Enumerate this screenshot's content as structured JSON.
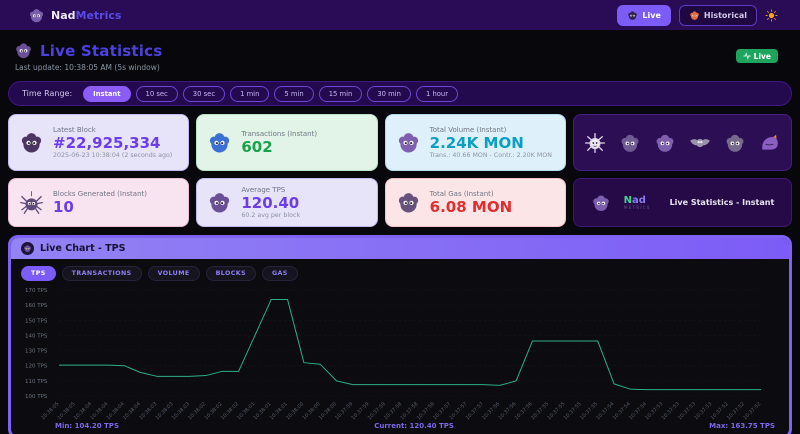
{
  "header": {
    "brand_nad": "Nad",
    "brand_metrics": "Metrics",
    "live_label": "Live",
    "historical_label": "Historical"
  },
  "page": {
    "title": "Live Statistics",
    "last_update": "Last update: 10:38:05 AM  (5s window)",
    "live_badge": "Live"
  },
  "time_range": {
    "label": "Time Range:",
    "selected": "Instant",
    "options": [
      "Instant",
      "10 sec",
      "30 sec",
      "1 min",
      "5 min",
      "15 min",
      "30 min",
      "1 hour"
    ]
  },
  "stats": [
    {
      "label": "Latest Block",
      "value": "#22,925,334",
      "sub": "2025-06-23 10:38:04 (2 seconds ago)"
    },
    {
      "label": "Transactions (Instant)",
      "value": "602",
      "sub": ""
    },
    {
      "label": "Total Volume (Instant)",
      "value": "2.24K MON",
      "sub": "Trans.: 40.66 MON - Contr.: 2.20K MON"
    },
    {
      "label": "Blocks Generated (Instant)",
      "value": "10",
      "sub": ""
    },
    {
      "label": "Average TPS",
      "value": "120.40",
      "sub": "60.2 avg per block"
    },
    {
      "label": "Total Gas (Instant)",
      "value": "6.08 MON",
      "sub": ""
    }
  ],
  "mascots": [
    "spiky-creature",
    "fluffy-creature",
    "cat-creature",
    "bat-creature",
    "round-creature",
    "slime-creature"
  ],
  "brand_card": {
    "brand_n": "N",
    "brand_rest": "ad",
    "metrics": "METRICS",
    "subtitle": "Live Statistics - Instant"
  },
  "chart": {
    "title": "Live Chart - TPS",
    "tabs": [
      "TPS",
      "TRANSACTIONS",
      "VOLUME",
      "BLOCKS",
      "GAS"
    ],
    "selected_tab": "TPS",
    "footer": {
      "min": "Min: 104.20 TPS",
      "current": "Current: 120.40 TPS",
      "max": "Max: 163.75 TPS"
    }
  },
  "chart_data": {
    "type": "line",
    "title": "Live Chart - TPS",
    "ylabel": "TPS",
    "ylim": [
      100,
      170
    ],
    "yticks": [
      170,
      160,
      150,
      140,
      130,
      120,
      110,
      100
    ],
    "ytick_suffix": " TPS",
    "grid": true,
    "legend": "none",
    "line_color": "#2fae84",
    "x": [
      "10:38:05",
      "10:38:05",
      "10:38:04",
      "10:38:04",
      "10:38:04",
      "10:38:04",
      "10:38:03",
      "10:38:03",
      "10:38:03",
      "10:38:02",
      "10:38:02",
      "10:38:02",
      "10:38:01",
      "10:38:01",
      "10:38:01",
      "10:38:00",
      "10:38:00",
      "10:38:00",
      "10:37:59",
      "10:37:59",
      "10:37:59",
      "10:37:58",
      "10:37:58",
      "10:37:58",
      "10:37:57",
      "10:37:57",
      "10:37:57",
      "10:37:56",
      "10:37:56",
      "10:37:56",
      "10:37:55",
      "10:37:55",
      "10:37:55",
      "10:37:55",
      "10:37:54",
      "10:37:54",
      "10:37:54",
      "10:37:53",
      "10:37:53",
      "10:37:53",
      "10:37:53",
      "10:37:52",
      "10:37:52",
      "10:37:52"
    ],
    "values": [
      120.4,
      120.4,
      120.4,
      120.4,
      120.0,
      115.5,
      113.0,
      113.0,
      113.0,
      113.5,
      116.3,
      116.3,
      140.0,
      163.75,
      163.75,
      122.0,
      121.0,
      110.0,
      107.5,
      107.5,
      107.5,
      107.5,
      107.5,
      107.5,
      107.5,
      107.5,
      107.5,
      107.0,
      110.0,
      136.3,
      136.3,
      136.3,
      136.3,
      136.3,
      108.0,
      104.5,
      104.2,
      104.2,
      104.2,
      104.2,
      104.2,
      104.2,
      104.2,
      104.2
    ],
    "min": 104.2,
    "current": 120.4,
    "max": 163.75
  }
}
